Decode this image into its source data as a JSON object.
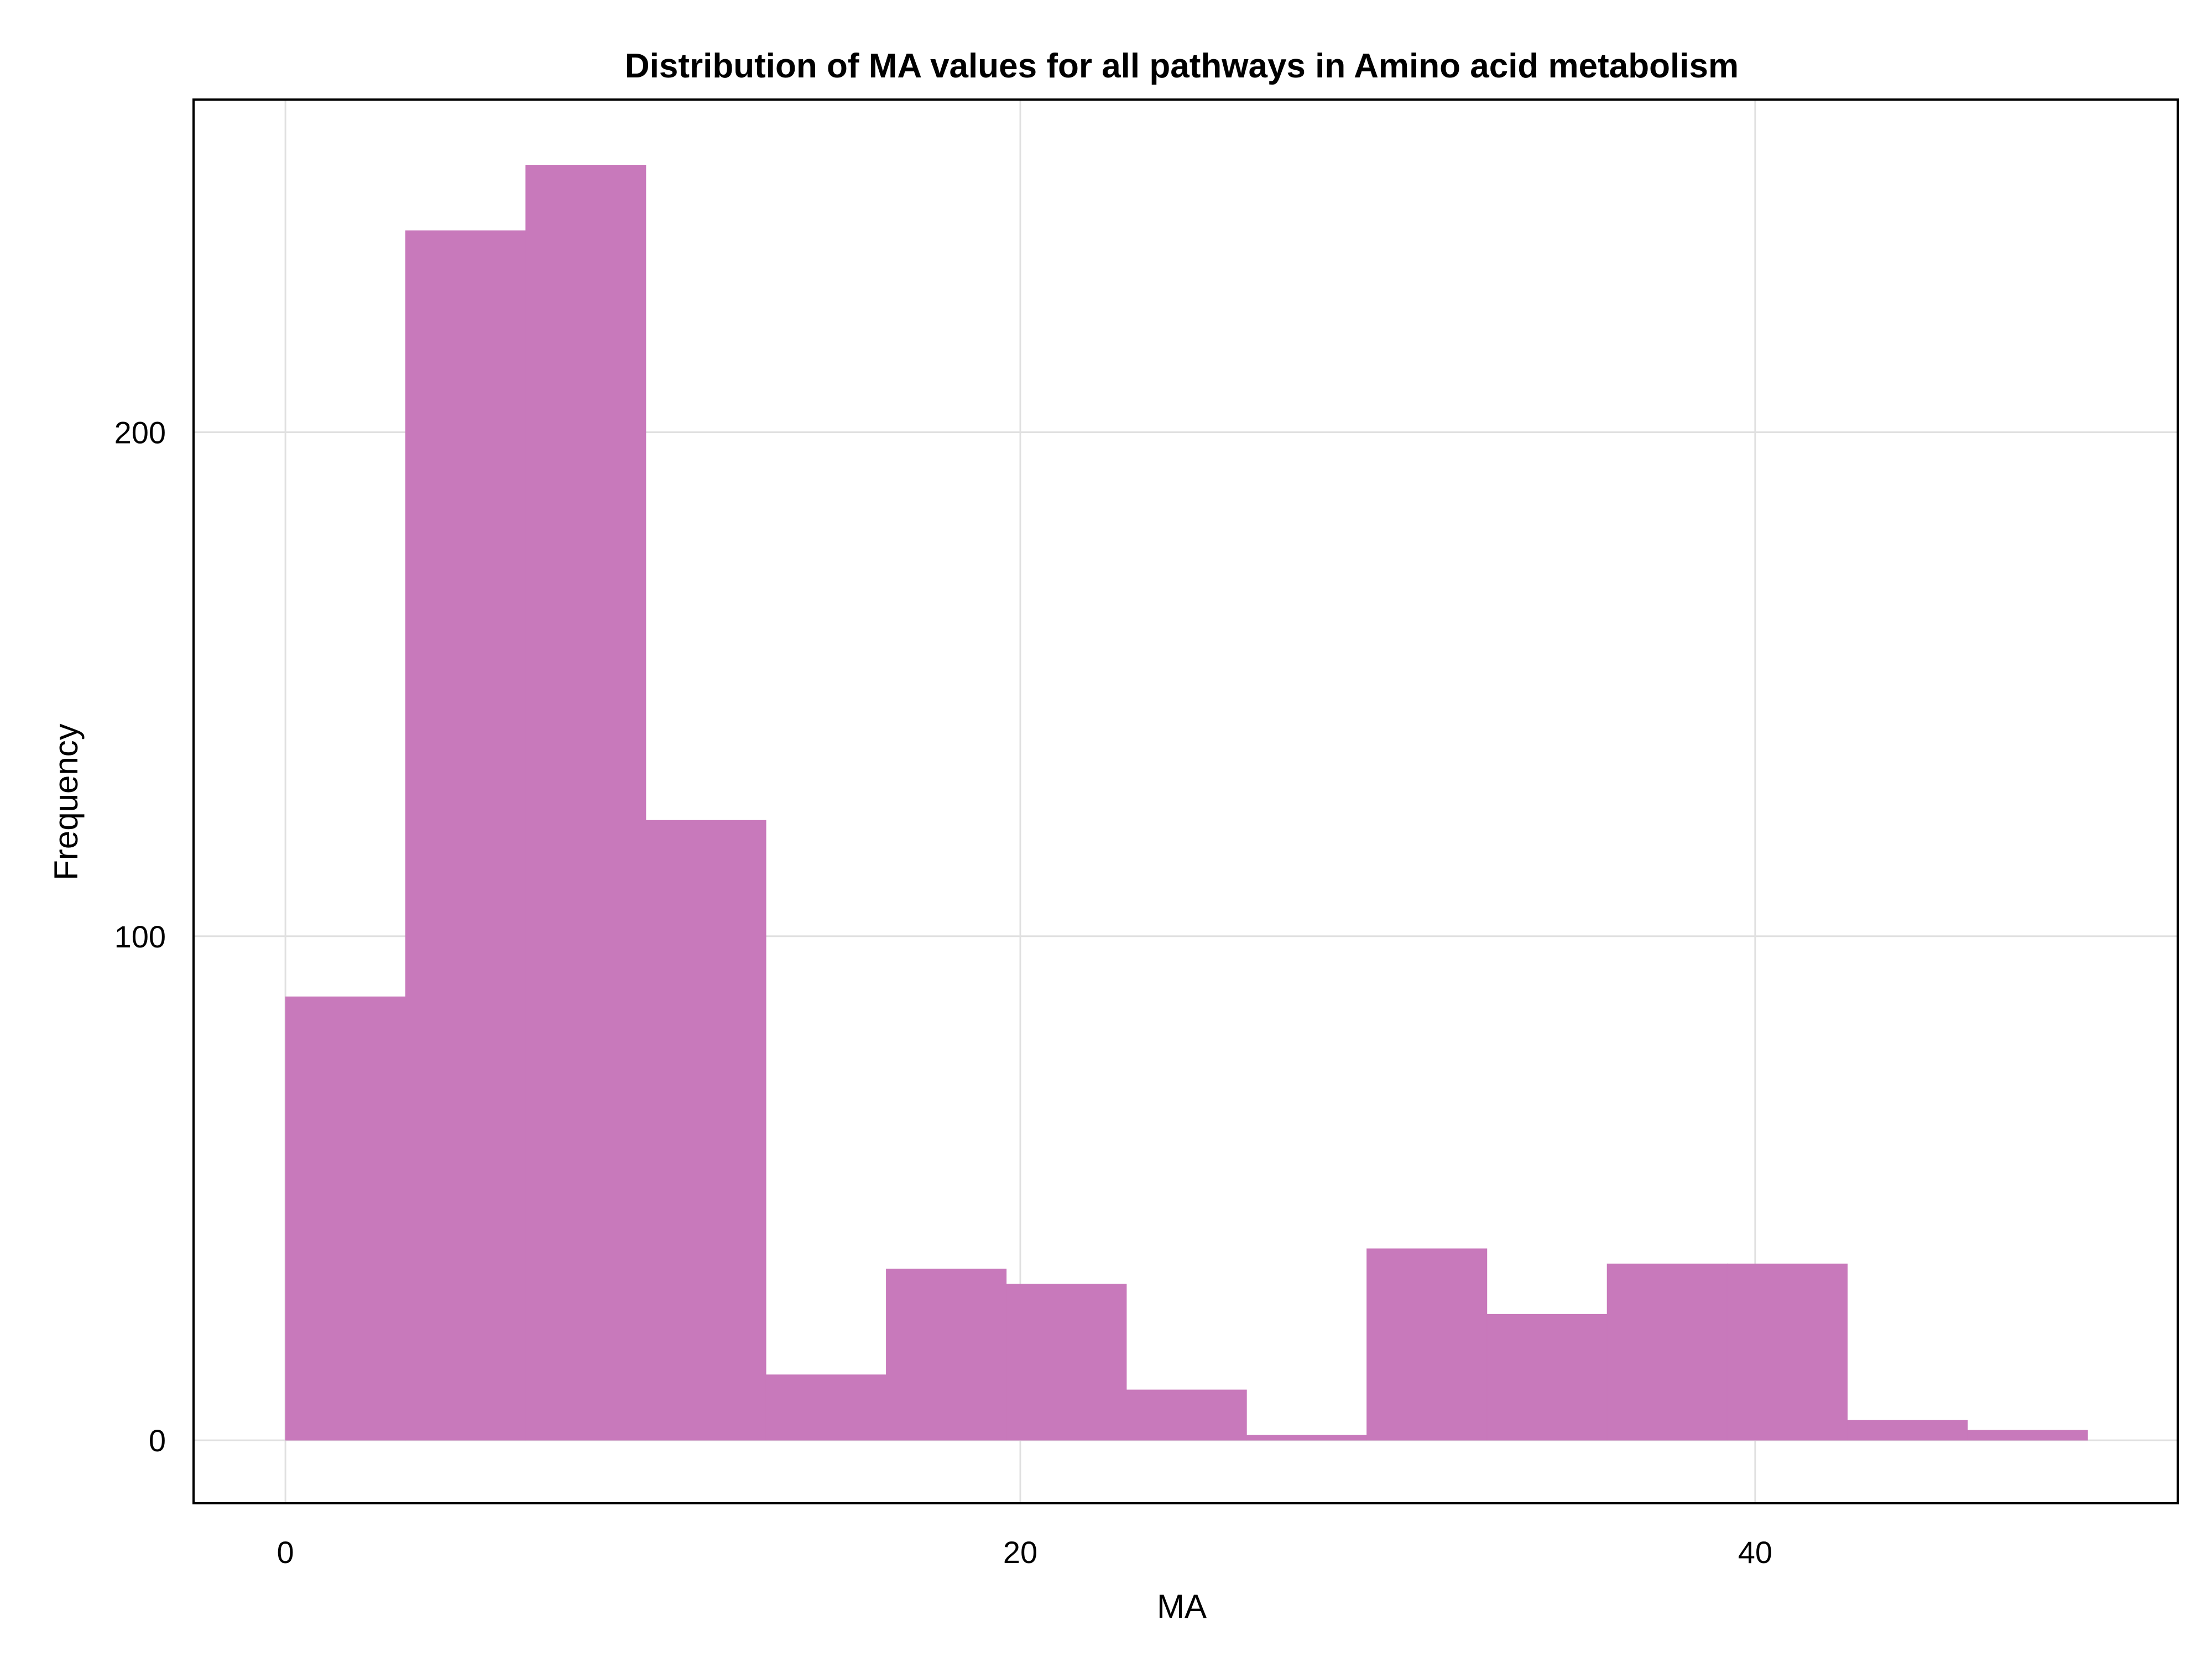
{
  "chart_data": {
    "type": "bar",
    "subtype": "histogram",
    "title": "Distribution of MA values for all pathways in Amino acid metabolism",
    "xlabel": "MA",
    "ylabel": "Frequency",
    "xlim": [
      -2.5,
      51.5
    ],
    "ylim": [
      -12.5,
      266
    ],
    "x_ticks": [
      0,
      20,
      40
    ],
    "y_ticks": [
      0,
      100,
      200
    ],
    "grid": true,
    "legend": "none",
    "bar_color": "#c879bb",
    "bins": [
      {
        "x0": 0.0,
        "x1": 3.27,
        "count": 88
      },
      {
        "x0": 3.27,
        "x1": 6.54,
        "count": 240
      },
      {
        "x0": 6.54,
        "x1": 9.81,
        "count": 253
      },
      {
        "x0": 9.81,
        "x1": 13.08,
        "count": 123
      },
      {
        "x0": 13.08,
        "x1": 16.35,
        "count": 13
      },
      {
        "x0": 16.35,
        "x1": 19.62,
        "count": 34
      },
      {
        "x0": 19.62,
        "x1": 22.89,
        "count": 31
      },
      {
        "x0": 22.89,
        "x1": 26.16,
        "count": 10
      },
      {
        "x0": 26.16,
        "x1": 29.43,
        "count": 1
      },
      {
        "x0": 29.43,
        "x1": 32.7,
        "count": 38
      },
      {
        "x0": 32.7,
        "x1": 35.97,
        "count": 25
      },
      {
        "x0": 35.97,
        "x1": 39.24,
        "count": 35
      },
      {
        "x0": 39.24,
        "x1": 42.51,
        "count": 35
      },
      {
        "x0": 42.51,
        "x1": 45.78,
        "count": 4
      },
      {
        "x0": 45.78,
        "x1": 49.05,
        "count": 2
      }
    ]
  }
}
